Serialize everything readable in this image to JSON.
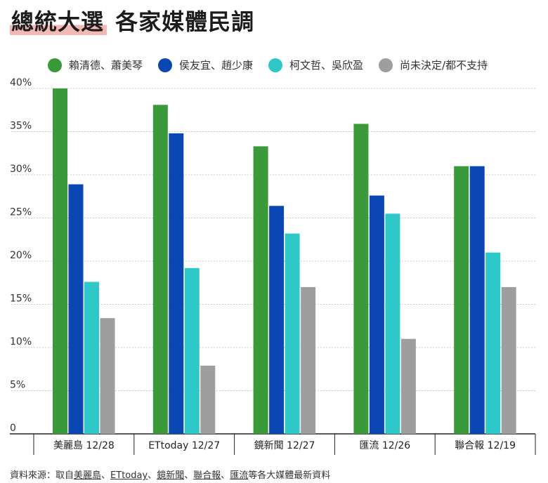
{
  "title": {
    "highlight": "總統大選",
    "rest": "各家媒體民調"
  },
  "colors": {
    "green": "#3a9a3a",
    "blue": "#0b47b3",
    "teal": "#2ec8c8",
    "gray": "#9e9e9e",
    "axis": "#222222",
    "grid": "#cccccc"
  },
  "chart_data": {
    "type": "bar",
    "title": "總統大選 各家媒體民調",
    "categories": [
      "美麗島 12/28",
      "ETtoday 12/27",
      "鏡新聞 12/27",
      "匯流 12/26",
      "聯合報 12/19"
    ],
    "series": [
      {
        "name": "賴清德、蕭美琴",
        "color": "#3a9a3a",
        "values": [
          40.0,
          38.1,
          33.3,
          35.9,
          31.0
        ]
      },
      {
        "name": "侯友宜、趙少康",
        "color": "#0b47b3",
        "values": [
          28.9,
          34.8,
          26.4,
          27.6,
          31.0
        ]
      },
      {
        "name": "柯文哲、吳欣盈",
        "color": "#2ec8c8",
        "values": [
          17.6,
          19.2,
          23.2,
          25.5,
          21.0
        ]
      },
      {
        "name": "尚未決定/都不支持",
        "color": "#9e9e9e",
        "values": [
          13.4,
          7.9,
          17.0,
          11.0,
          17.0
        ]
      }
    ],
    "ylim": [
      0,
      40
    ],
    "yticks": [
      0,
      5,
      10,
      15,
      20,
      25,
      30,
      35,
      40
    ],
    "ytick_labels": [
      "0",
      "5%",
      "10%",
      "15%",
      "20%",
      "25%",
      "30%",
      "35%",
      "40%"
    ],
    "grid": true,
    "legend_position": "top"
  },
  "source": {
    "prefix": "資料來源：取自",
    "sep": "、",
    "outlets": [
      "美麗島",
      "ETtoday",
      "鏡新聞",
      "聯合報",
      "匯流"
    ],
    "suffix": "等各大媒體最新資料"
  }
}
